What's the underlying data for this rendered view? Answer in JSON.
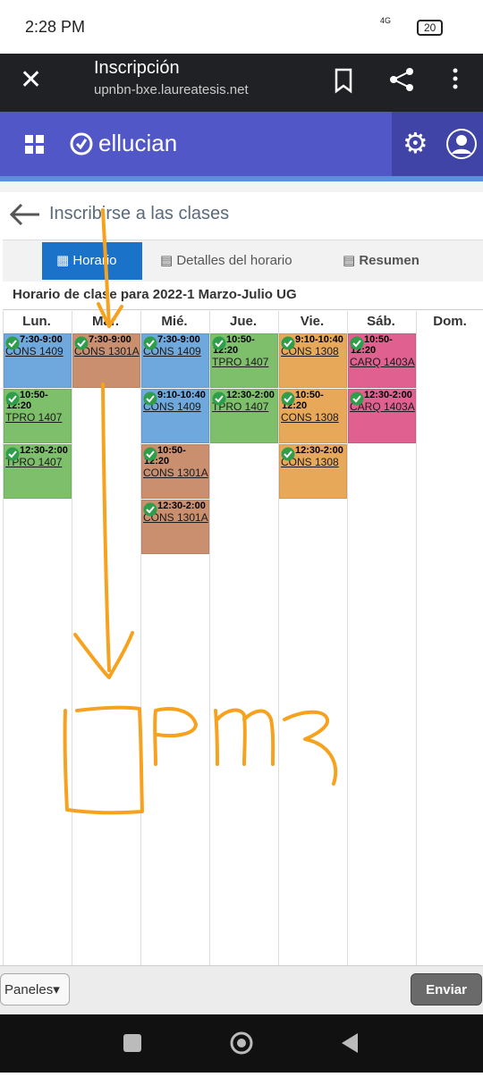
{
  "status_bar": {
    "time": "2:28 PM",
    "network": "4G",
    "battery": "20"
  },
  "browser": {
    "title": "Inscripción",
    "url": "upnbn-bxe.laureatesis.net"
  },
  "app_header": {
    "brand": "ellucian"
  },
  "page": {
    "title": "Inscribirse a las clases",
    "tabs": [
      "Horario",
      "Detalles del horario",
      "Resumen"
    ],
    "schedule_title": "Horario de clase para 2022-1 Marzo-Julio UG",
    "days": [
      {
        "name": "Lun.",
        "events": [
          {
            "time": "7:30-9:00",
            "course": "CONS 1409",
            "color": "#6fa8dc"
          },
          {
            "time": "10:50-12:20",
            "course": "TPRO 1407",
            "color": "#7dbf6a"
          },
          {
            "time": "12:30-2:00",
            "course": "TPRO 1407",
            "color": "#7dbf6a"
          }
        ]
      },
      {
        "name": "Mar.",
        "events": [
          {
            "time": "7:30-9:00",
            "course": "CONS 1301A",
            "color": "#c98f6e"
          }
        ]
      },
      {
        "name": "Mié.",
        "events": [
          {
            "time": "7:30-9:00",
            "course": "CONS 1409",
            "color": "#6fa8dc"
          },
          {
            "time": "9:10-10:40",
            "course": "CONS 1409",
            "color": "#6fa8dc"
          },
          {
            "time": "10:50-12:20",
            "course": "CONS 1301A",
            "color": "#c98f6e"
          },
          {
            "time": "12:30-2:00",
            "course": "CONS 1301A",
            "color": "#c98f6e"
          }
        ]
      },
      {
        "name": "Jue.",
        "events": [
          {
            "time": "10:50-12:20",
            "course": "TPRO 1407",
            "color": "#7dbf6a"
          },
          {
            "time": "12:30-2:00",
            "course": "TPRO 1407",
            "color": "#7dbf6a"
          }
        ]
      },
      {
        "name": "Vie.",
        "events": [
          {
            "time": "9:10-10:40",
            "course": "CONS 1308",
            "color": "#e8a85a"
          },
          {
            "time": "10:50-12:20",
            "course": "CONS 1308",
            "color": "#e8a85a"
          },
          {
            "time": "12:30-2:00",
            "course": "CONS 1308",
            "color": "#e8a85a"
          }
        ]
      },
      {
        "name": "Sáb.",
        "events": [
          {
            "time": "10:50-12:20",
            "course": "CARQ 1403A",
            "color": "#e0608f"
          },
          {
            "time": "12:30-2:00",
            "course": "CARQ 1403A",
            "color": "#e0608f"
          }
        ]
      },
      {
        "name": "Dom.",
        "events": []
      }
    ]
  },
  "footer": {
    "panels": "Paneles",
    "submit": "Enviar"
  }
}
